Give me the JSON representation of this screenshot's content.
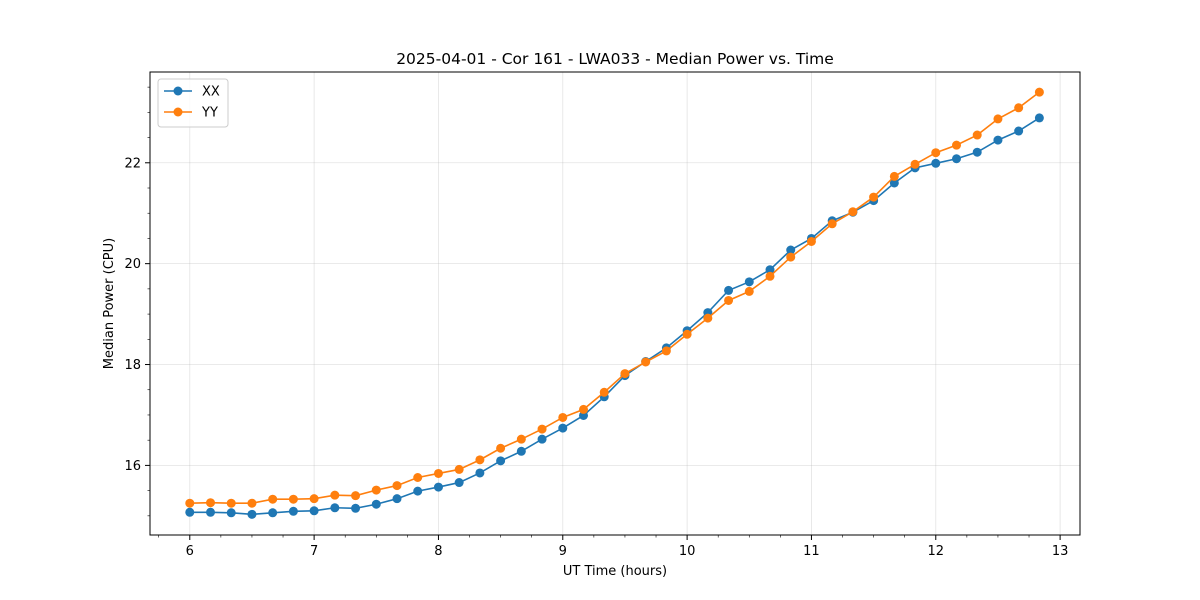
{
  "chart_data": {
    "type": "line",
    "title": "2025-04-01 - Cor 161 - LWA033 - Median Power vs. Time",
    "xlabel": "UT Time (hours)",
    "ylabel": "Median Power (CPU)",
    "xlim": [
      5.68,
      13.16
    ],
    "ylim": [
      14.62,
      23.8
    ],
    "xticks": [
      6,
      7,
      8,
      9,
      10,
      11,
      12,
      13
    ],
    "yticks": [
      16,
      18,
      20,
      22
    ],
    "grid": true,
    "legend_position": "upper-left",
    "x": [
      6.0,
      6.1667,
      6.3333,
      6.5,
      6.6667,
      6.8333,
      7.0,
      7.1667,
      7.3333,
      7.5,
      7.6667,
      7.8333,
      8.0,
      8.1667,
      8.3333,
      8.5,
      8.6667,
      8.8333,
      9.0,
      9.1667,
      9.3333,
      9.5,
      9.6667,
      9.8333,
      10.0,
      10.1667,
      10.3333,
      10.5,
      10.6667,
      10.8333,
      11.0,
      11.1667,
      11.3333,
      11.5,
      11.6667,
      11.8333,
      12.0,
      12.1667,
      12.3333,
      12.5,
      12.6667,
      12.8333
    ],
    "series": [
      {
        "name": "XX",
        "color": "#1f77b4",
        "values": [
          15.07,
          15.07,
          15.06,
          15.03,
          15.06,
          15.09,
          15.1,
          15.16,
          15.15,
          15.23,
          15.34,
          15.49,
          15.57,
          15.66,
          15.85,
          16.09,
          16.28,
          16.52,
          16.74,
          16.99,
          17.36,
          17.78,
          18.06,
          18.33,
          18.67,
          19.03,
          19.47,
          19.64,
          19.88,
          20.27,
          20.5,
          20.85,
          21.02,
          21.25,
          21.6,
          21.9,
          21.99,
          22.08,
          22.21,
          22.45,
          22.63,
          22.89
        ]
      },
      {
        "name": "YY",
        "color": "#ff7f0e",
        "values": [
          15.25,
          15.26,
          15.25,
          15.25,
          15.33,
          15.33,
          15.34,
          15.41,
          15.4,
          15.51,
          15.6,
          15.76,
          15.84,
          15.92,
          16.11,
          16.34,
          16.52,
          16.72,
          16.95,
          17.11,
          17.45,
          17.82,
          18.05,
          18.27,
          18.6,
          18.92,
          19.27,
          19.45,
          19.75,
          20.13,
          20.44,
          20.79,
          21.03,
          21.32,
          21.73,
          21.97,
          22.2,
          22.35,
          22.55,
          22.87,
          23.09,
          23.4
        ]
      }
    ]
  }
}
